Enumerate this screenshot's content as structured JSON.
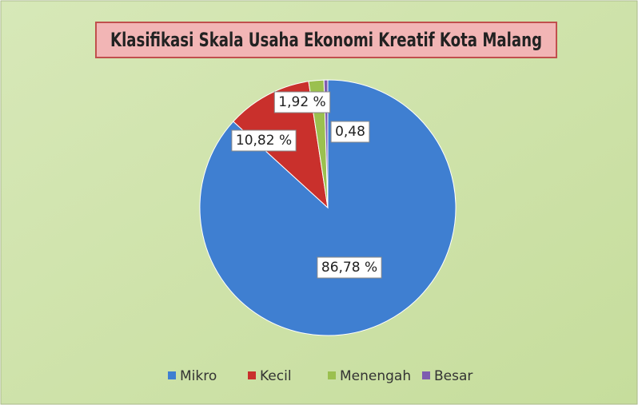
{
  "chart_data": {
    "type": "pie",
    "title": "Klasifikasi Skala Usaha  Ekonomi Kreatif Kota Malang",
    "categories": [
      "Mikro",
      "Kecil",
      "Menengah",
      "Besar"
    ],
    "values": [
      86.78,
      10.82,
      1.92,
      0.48
    ],
    "value_labels": [
      "86,78 %",
      "10,82 %",
      "1,92 %",
      "0,48"
    ],
    "colors": [
      "#3f7fd1",
      "#c9302c",
      "#9bc04f",
      "#7e5cb0"
    ],
    "legend": "bottom"
  }
}
